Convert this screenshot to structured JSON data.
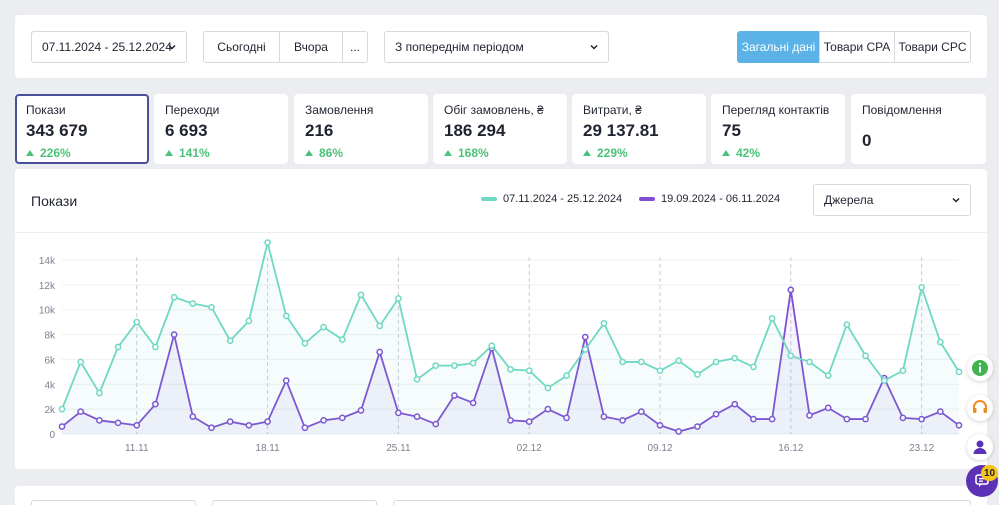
{
  "toolbar": {
    "date_range": "07.11.2024 - 25.12.2024",
    "quick_ranges": [
      "Сьогодні",
      "Вчора",
      "..."
    ],
    "compare_select": "З попереднім періодом",
    "view_tabs": [
      {
        "label": "Загальні дані",
        "active": true
      },
      {
        "label": "Товари CPA",
        "active": false
      },
      {
        "label": "Товари CPC",
        "active": false
      }
    ]
  },
  "kpis": [
    {
      "label": "Покази",
      "value": "343 679",
      "delta": "226%",
      "selected": true
    },
    {
      "label": "Переходи",
      "value": "6 693",
      "delta": "141%",
      "selected": false
    },
    {
      "label": "Замовлення",
      "value": "216",
      "delta": "86%",
      "selected": false
    },
    {
      "label": "Обіг замовлень, ₴",
      "value": "186 294",
      "delta": "168%",
      "selected": false
    },
    {
      "label": "Витрати, ₴",
      "value": "29 137.81",
      "delta": "229%",
      "selected": false
    },
    {
      "label": "Перегляд контактів",
      "value": "75",
      "delta": "42%",
      "selected": false
    },
    {
      "label": "Повідомлення",
      "value": "0",
      "delta": null,
      "selected": false
    }
  ],
  "chart_panel": {
    "title": "Покази",
    "source_select": "Джерела"
  },
  "chart_data": {
    "type": "line",
    "title": "Покази",
    "ylim": [
      0,
      14000
    ],
    "yticks": [
      "0",
      "2k",
      "4k",
      "6k",
      "8k",
      "10k",
      "12k",
      "14k"
    ],
    "x_tick_labels": [
      "11.11",
      "18.11",
      "25.11",
      "02.12",
      "09.12",
      "16.12",
      "23.12"
    ],
    "x_tick_indices": [
      4,
      11,
      18,
      25,
      32,
      39,
      46
    ],
    "grid": true,
    "legend_position": "top-center",
    "colors": {
      "current": "#6fd8c4",
      "previous": "#7e4fd3"
    },
    "series": [
      {
        "name": "07.11.2024 - 25.12.2024",
        "color": "#6fd8c4",
        "values": [
          2000,
          5800,
          3300,
          7000,
          9000,
          7000,
          11000,
          10500,
          10200,
          7500,
          9100,
          15400,
          9500,
          7300,
          8600,
          7600,
          11200,
          8700,
          10900,
          4400,
          5500,
          5500,
          5700,
          7100,
          5200,
          5100,
          3700,
          4700,
          6800,
          8900,
          5800,
          5800,
          5100,
          5900,
          4800,
          5800,
          6100,
          5400,
          9300,
          6300,
          5800,
          4700,
          8800,
          6300,
          4300,
          5100,
          11800,
          7400,
          5000
        ]
      },
      {
        "name": "19.09.2024 - 06.11.2024",
        "color": "#7e4fd3",
        "values": [
          600,
          1800,
          1100,
          900,
          700,
          2400,
          8000,
          1400,
          500,
          1000,
          700,
          1000,
          4300,
          500,
          1100,
          1300,
          1900,
          6600,
          1700,
          1400,
          800,
          3100,
          2500,
          6900,
          1100,
          1000,
          2000,
          1300,
          7800,
          1400,
          1100,
          1800,
          700,
          200,
          600,
          1600,
          2400,
          1200,
          1200,
          11600,
          1500,
          2100,
          1200,
          1200,
          4500,
          1300,
          1200,
          1800,
          700
        ]
      }
    ]
  },
  "side_icons": [
    "info-icon",
    "headset-icon",
    "person-icon"
  ],
  "chat": {
    "badge": "10"
  }
}
